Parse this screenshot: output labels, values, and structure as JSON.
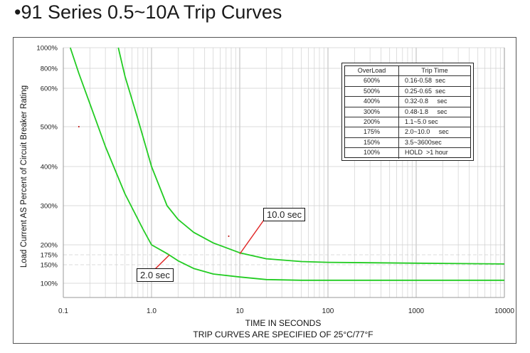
{
  "title": "•91 Series 0.5~10A Trip Curves",
  "chart_data": {
    "type": "line",
    "ylabel": "Load Current AS Percent of Circuit Breaker Rating",
    "xlabel": "TIME IN SECONDS",
    "x_subtitle": "TRIP CURVES ARE SPECIFIED OF 25°C/77°F",
    "x_scale": "log",
    "xlim": [
      0.1,
      10000
    ],
    "x_ticks": [
      {
        "value": 0.1,
        "label": "0.1"
      },
      {
        "value": 1,
        "label": "1.0"
      },
      {
        "value": 10,
        "label": "10"
      },
      {
        "value": 100,
        "label": "100"
      },
      {
        "value": 1000,
        "label": "1000"
      },
      {
        "value": 10000,
        "label": "10000"
      }
    ],
    "y_ticks": [
      {
        "value": 100,
        "label": "100%"
      },
      {
        "value": 150,
        "label": "150%"
      },
      {
        "value": 175,
        "label": "175%"
      },
      {
        "value": 200,
        "label": "200%"
      },
      {
        "value": 300,
        "label": "300%"
      },
      {
        "value": 400,
        "label": "400%"
      },
      {
        "value": 500,
        "label": "500%"
      },
      {
        "value": 600,
        "label": "600%"
      },
      {
        "value": 800,
        "label": "800%"
      },
      {
        "value": 1000,
        "label": "1000%"
      }
    ],
    "grid": true,
    "series": [
      {
        "name": "",
        "color": "#22cc22",
        "points": [
          [
            0.12,
            1000
          ],
          [
            0.15,
            750
          ],
          [
            0.2,
            560
          ],
          [
            0.3,
            450
          ],
          [
            0.5,
            330
          ],
          [
            0.8,
            240
          ],
          [
            1.0,
            200
          ],
          [
            1.5,
            178
          ],
          [
            2,
            160
          ],
          [
            3,
            140
          ],
          [
            5,
            125
          ],
          [
            10,
            117
          ],
          [
            20,
            110
          ],
          [
            50,
            108
          ],
          [
            100,
            108
          ],
          [
            1000,
            108
          ],
          [
            10000,
            108
          ]
        ]
      },
      {
        "name": "",
        "color": "#22cc22",
        "points": [
          [
            0.42,
            1000
          ],
          [
            0.5,
            720
          ],
          [
            0.7,
            520
          ],
          [
            1.0,
            400
          ],
          [
            1.5,
            300
          ],
          [
            2,
            265
          ],
          [
            3,
            232
          ],
          [
            5,
            205
          ],
          [
            10,
            180
          ],
          [
            20,
            165
          ],
          [
            50,
            158
          ],
          [
            100,
            156
          ],
          [
            1000,
            154
          ],
          [
            10000,
            152
          ]
        ]
      }
    ],
    "annotations": [
      {
        "label": "10.0 sec",
        "points_to": [
          10,
          177
        ]
      },
      {
        "label": "2.0 sec",
        "points_to": [
          1.6,
          175
        ]
      }
    ],
    "minor_marks": [
      [
        0.15,
        500
      ],
      [
        7.5,
        222
      ]
    ]
  },
  "table": {
    "headers": [
      "OverLoad",
      "Trip Time"
    ],
    "rows": [
      [
        "600%",
        "0.16-0.58  sec"
      ],
      [
        "500%",
        "0.25-0.65  sec"
      ],
      [
        "400%",
        "0.32-0.8     sec"
      ],
      [
        "300%",
        "0.48-1.8     sec"
      ],
      [
        "200%",
        "1.1~5.0 sec"
      ],
      [
        "175%",
        "2.0~10.0     sec"
      ],
      [
        "150%",
        "3.5~3600sec"
      ],
      [
        "100%",
        "HOLD  >1 hour"
      ]
    ]
  }
}
